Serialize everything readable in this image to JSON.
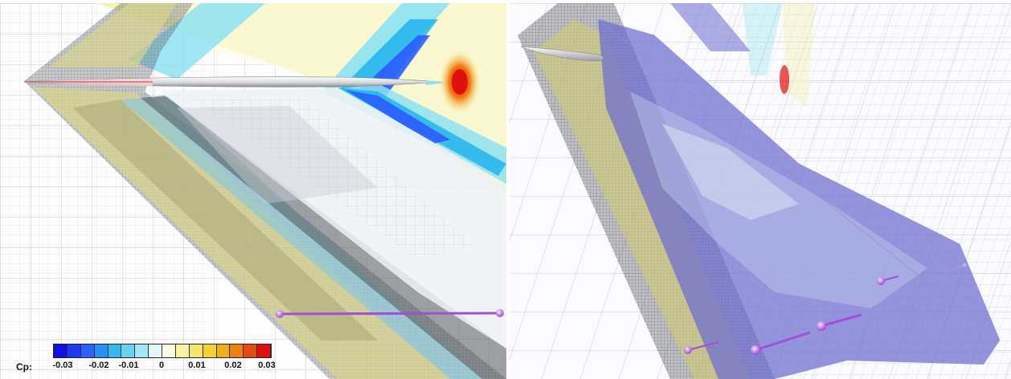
{
  "legend": {
    "variable_label": "Cp:",
    "ticks": [
      "-0.03",
      "-0.02",
      "-0.01",
      "0",
      "0.01",
      "0.02",
      "0.03"
    ],
    "range": [
      -0.03,
      0.03
    ],
    "colors": [
      "#1010e8",
      "#2a5cff",
      "#22b4ee",
      "#8ee2f2",
      "#ffffff",
      "#f6f08c",
      "#f4cf22",
      "#f07a10",
      "#e01010"
    ]
  },
  "panels": [
    {
      "name": "pressure-cut-view"
    },
    {
      "name": "mesh-isosurface-view"
    }
  ]
}
